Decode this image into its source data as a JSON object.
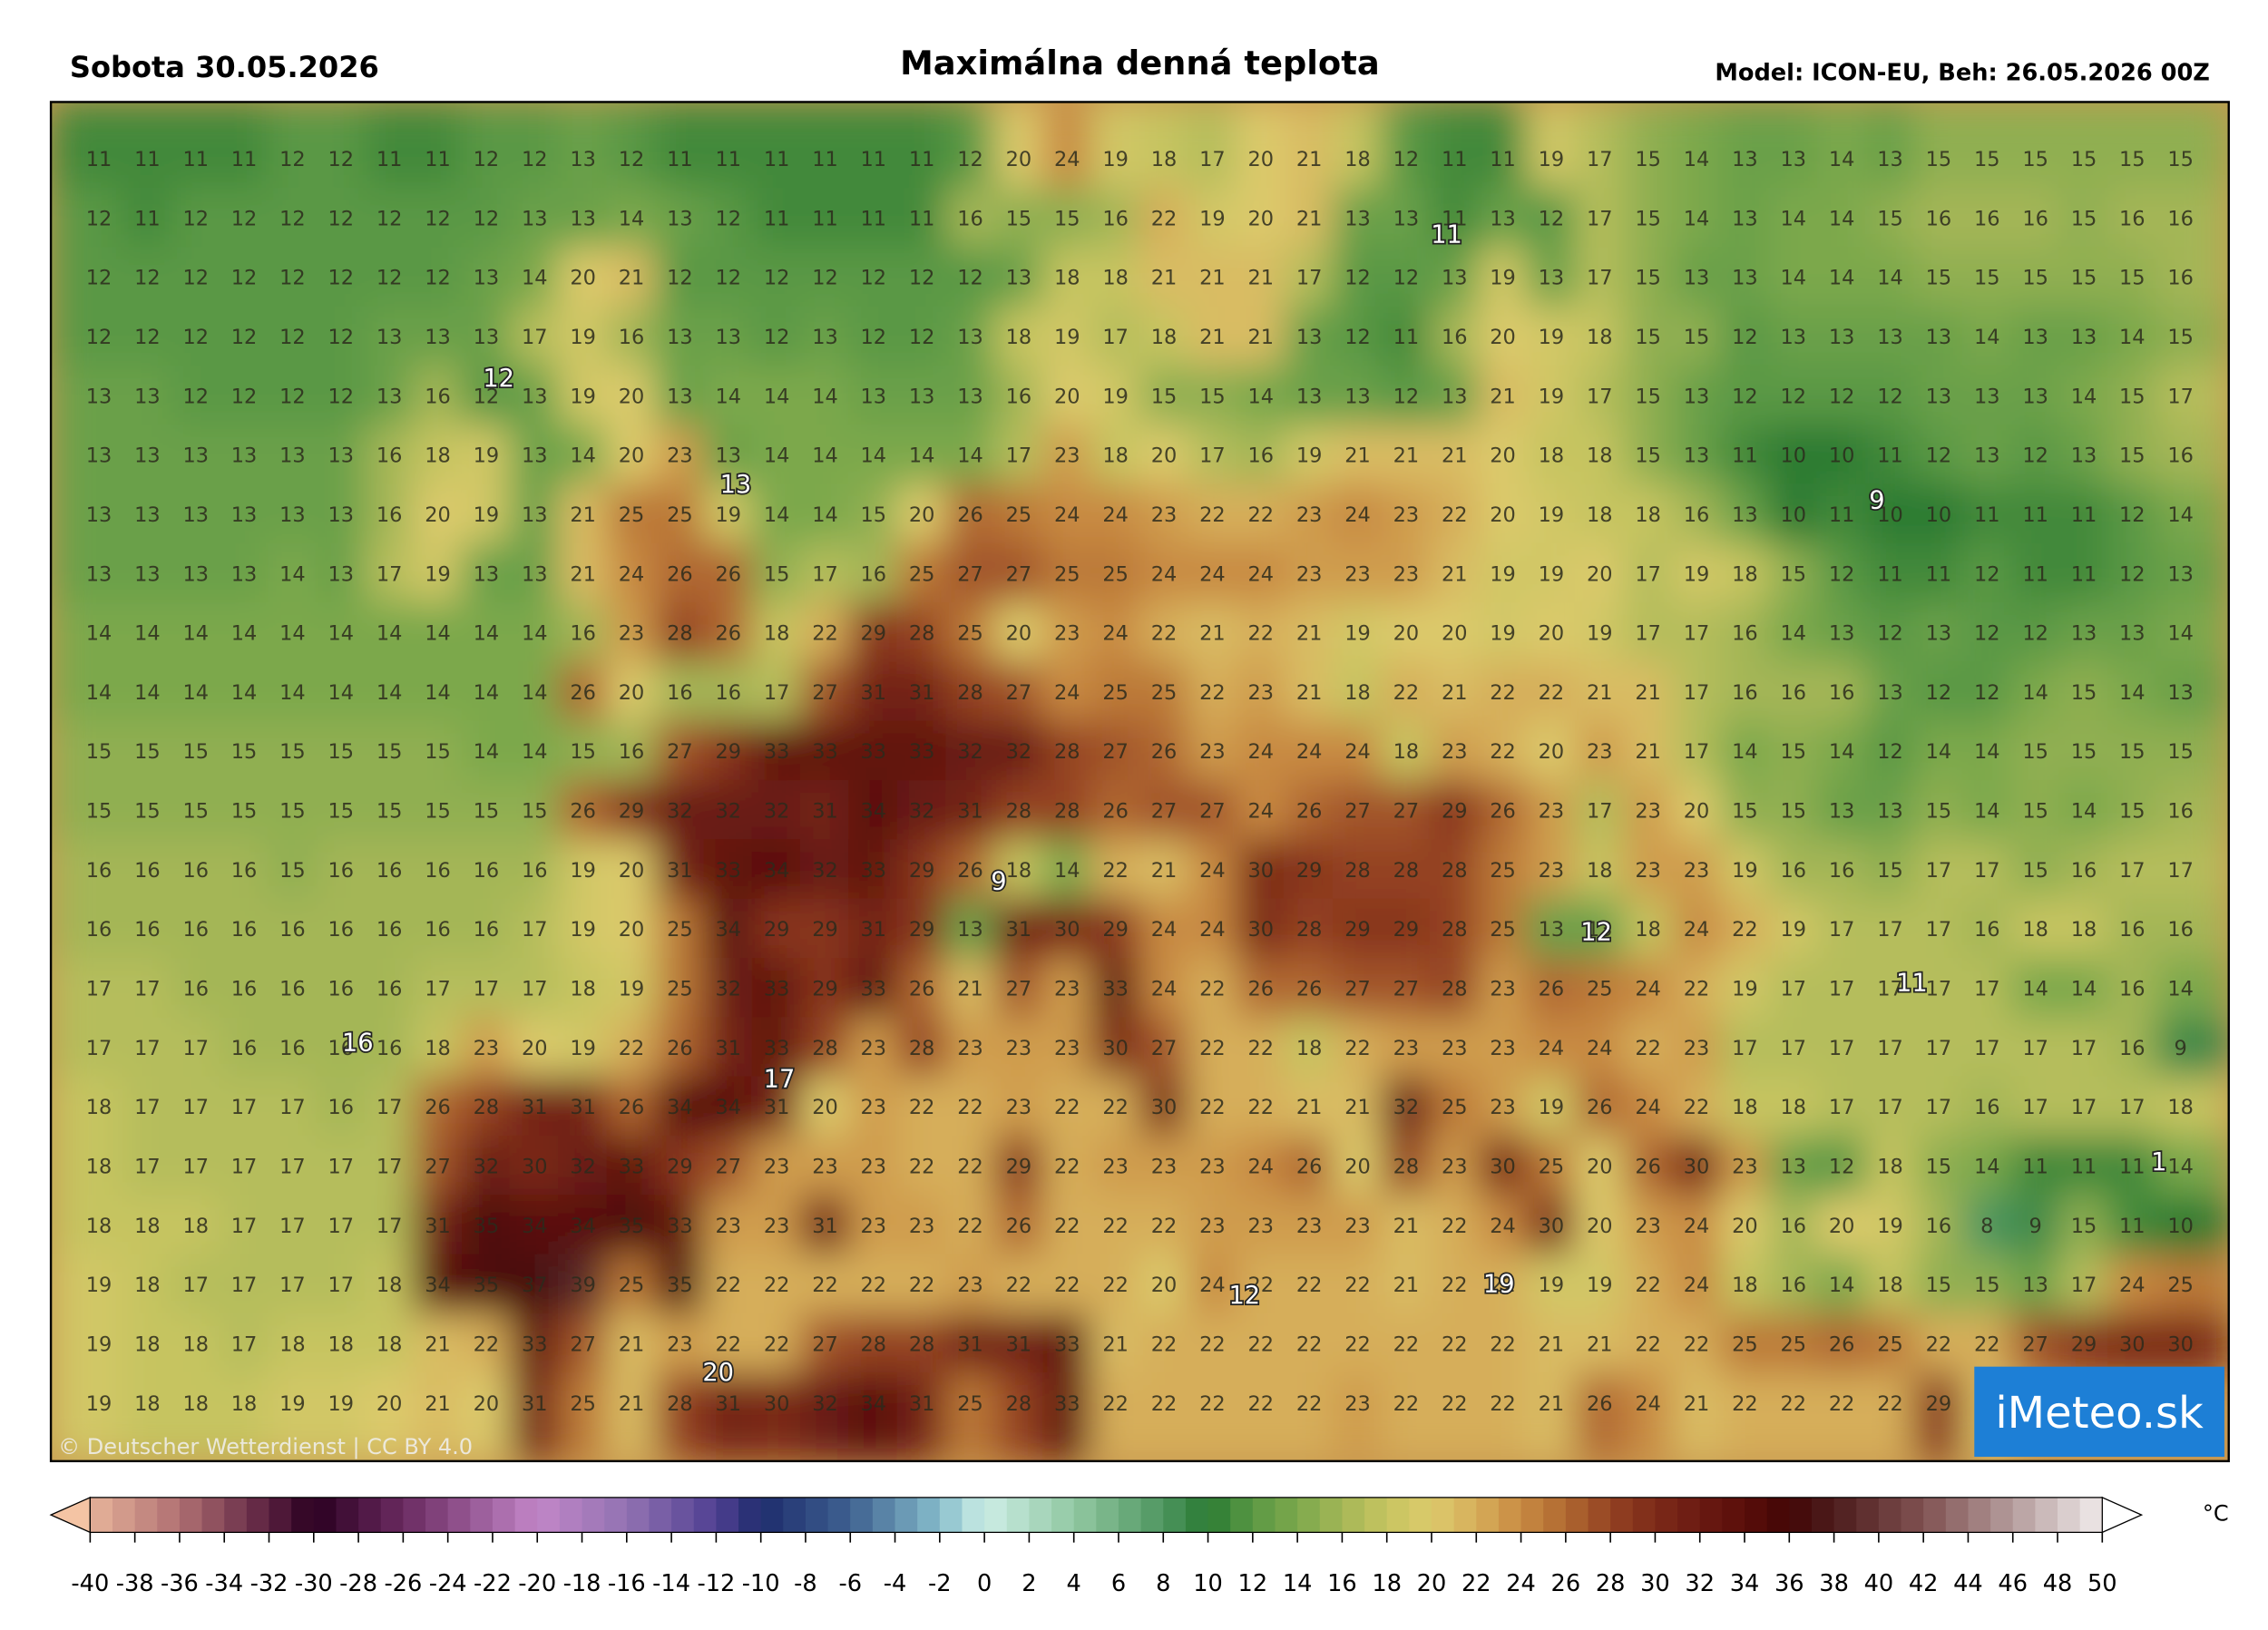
{
  "header": {
    "date": "Sobota 30.05.2026",
    "title": "Maximálna denná teplota",
    "model": "Model: ICON-EU, Beh: 26.05.2026 00Z"
  },
  "map": {
    "grid": [
      [
        11,
        11,
        11,
        11,
        12,
        12,
        11,
        11,
        12,
        12,
        13,
        12,
        11,
        11,
        11,
        11,
        11,
        11,
        12,
        20,
        24,
        19,
        18,
        17,
        20,
        21,
        18,
        12,
        11,
        11,
        19,
        17,
        15,
        14,
        13,
        13,
        14,
        13,
        15,
        15,
        15,
        15,
        15,
        15
      ],
      [
        12,
        11,
        12,
        12,
        12,
        12,
        12,
        12,
        12,
        13,
        13,
        14,
        13,
        12,
        11,
        11,
        11,
        11,
        16,
        15,
        15,
        16,
        22,
        19,
        20,
        21,
        13,
        13,
        11,
        13,
        12,
        17,
        15,
        14,
        13,
        14,
        14,
        15,
        16,
        16,
        16,
        15,
        16,
        16
      ],
      [
        12,
        12,
        12,
        12,
        12,
        12,
        12,
        12,
        13,
        14,
        20,
        21,
        12,
        12,
        12,
        12,
        12,
        12,
        12,
        13,
        18,
        18,
        21,
        21,
        21,
        17,
        12,
        12,
        13,
        19,
        13,
        17,
        15,
        13,
        13,
        14,
        14,
        14,
        15,
        15,
        15,
        15,
        15,
        16
      ],
      [
        12,
        12,
        12,
        12,
        12,
        12,
        13,
        13,
        13,
        17,
        19,
        16,
        13,
        13,
        12,
        13,
        12,
        12,
        13,
        18,
        19,
        17,
        18,
        21,
        21,
        13,
        12,
        11,
        16,
        20,
        19,
        18,
        15,
        15,
        12,
        13,
        13,
        13,
        13,
        14,
        13,
        13,
        14,
        15
      ],
      [
        13,
        13,
        12,
        12,
        12,
        12,
        13,
        16,
        12,
        13,
        19,
        20,
        13,
        14,
        14,
        14,
        13,
        13,
        13,
        16,
        20,
        19,
        15,
        15,
        14,
        13,
        13,
        12,
        13,
        21,
        19,
        17,
        15,
        13,
        12,
        12,
        12,
        12,
        13,
        13,
        13,
        14,
        15,
        17
      ],
      [
        13,
        13,
        13,
        13,
        13,
        13,
        16,
        18,
        19,
        13,
        14,
        20,
        23,
        13,
        14,
        14,
        14,
        14,
        14,
        17,
        23,
        18,
        20,
        17,
        16,
        19,
        21,
        21,
        21,
        20,
        18,
        18,
        15,
        13,
        11,
        10,
        10,
        11,
        12,
        13,
        12,
        13,
        15,
        16
      ],
      [
        13,
        13,
        13,
        13,
        13,
        13,
        16,
        20,
        19,
        13,
        21,
        25,
        25,
        19,
        14,
        14,
        15,
        20,
        26,
        25,
        24,
        24,
        23,
        22,
        22,
        23,
        24,
        23,
        22,
        20,
        19,
        18,
        18,
        16,
        13,
        10,
        11,
        10,
        10,
        11,
        11,
        11,
        12,
        14
      ],
      [
        13,
        13,
        13,
        13,
        14,
        13,
        17,
        19,
        13,
        13,
        21,
        24,
        26,
        26,
        15,
        17,
        16,
        25,
        27,
        27,
        25,
        25,
        24,
        24,
        24,
        23,
        23,
        23,
        21,
        19,
        19,
        20,
        17,
        19,
        18,
        15,
        12,
        11,
        11,
        12,
        11,
        11,
        12,
        13
      ],
      [
        14,
        14,
        14,
        14,
        14,
        14,
        14,
        14,
        14,
        14,
        16,
        23,
        28,
        26,
        18,
        22,
        29,
        28,
        25,
        20,
        23,
        24,
        22,
        21,
        22,
        21,
        19,
        20,
        20,
        19,
        20,
        19,
        17,
        17,
        16,
        14,
        13,
        12,
        13,
        12,
        12,
        13,
        13,
        14
      ],
      [
        14,
        14,
        14,
        14,
        14,
        14,
        14,
        14,
        14,
        14,
        26,
        20,
        16,
        16,
        17,
        27,
        31,
        31,
        28,
        27,
        24,
        25,
        25,
        22,
        23,
        21,
        18,
        22,
        21,
        22,
        22,
        21,
        21,
        17,
        16,
        16,
        16,
        13,
        12,
        12,
        14,
        15,
        14,
        13
      ],
      [
        15,
        15,
        15,
        15,
        15,
        15,
        15,
        15,
        14,
        14,
        15,
        16,
        27,
        29,
        33,
        33,
        33,
        33,
        32,
        32,
        28,
        27,
        26,
        23,
        24,
        24,
        24,
        18,
        23,
        22,
        20,
        23,
        21,
        17,
        14,
        15,
        14,
        12,
        14,
        14,
        15,
        15,
        15,
        15
      ],
      [
        15,
        15,
        15,
        15,
        15,
        15,
        15,
        15,
        15,
        15,
        26,
        29,
        32,
        32,
        32,
        31,
        34,
        32,
        31,
        28,
        28,
        26,
        27,
        27,
        24,
        26,
        27,
        27,
        29,
        26,
        23,
        17,
        23,
        20,
        15,
        15,
        13,
        13,
        15,
        14,
        15,
        14,
        15,
        16
      ],
      [
        16,
        16,
        16,
        16,
        15,
        16,
        16,
        16,
        16,
        16,
        19,
        20,
        31,
        33,
        34,
        32,
        33,
        29,
        26,
        18,
        14,
        22,
        21,
        24,
        30,
        29,
        28,
        28,
        28,
        25,
        23,
        18,
        23,
        23,
        19,
        16,
        16,
        15,
        17,
        17,
        15,
        16,
        17,
        17
      ],
      [
        16,
        16,
        16,
        16,
        16,
        16,
        16,
        16,
        16,
        17,
        19,
        20,
        25,
        34,
        29,
        29,
        31,
        29,
        13,
        31,
        30,
        29,
        24,
        24,
        30,
        28,
        29,
        29,
        28,
        25,
        13,
        13,
        18,
        24,
        22,
        19,
        17,
        17,
        17,
        16,
        18,
        18,
        16,
        16
      ],
      [
        17,
        17,
        16,
        16,
        16,
        16,
        16,
        17,
        17,
        17,
        18,
        19,
        25,
        32,
        33,
        29,
        33,
        26,
        21,
        27,
        23,
        33,
        24,
        22,
        26,
        26,
        27,
        27,
        28,
        23,
        26,
        25,
        24,
        22,
        19,
        17,
        17,
        17,
        17,
        17,
        14,
        14,
        16,
        14
      ],
      [
        17,
        17,
        17,
        16,
        16,
        16,
        16,
        18,
        23,
        20,
        19,
        22,
        26,
        31,
        33,
        28,
        23,
        28,
        23,
        23,
        23,
        30,
        27,
        22,
        22,
        18,
        22,
        23,
        23,
        23,
        24,
        24,
        22,
        23,
        17,
        17,
        17,
        17,
        17,
        17,
        17,
        17,
        16,
        9
      ],
      [
        18,
        17,
        17,
        17,
        17,
        16,
        17,
        26,
        28,
        31,
        31,
        26,
        34,
        34,
        31,
        20,
        23,
        22,
        22,
        23,
        22,
        22,
        30,
        22,
        22,
        21,
        21,
        32,
        25,
        23,
        19,
        26,
        24,
        22,
        18,
        18,
        17,
        17,
        17,
        16,
        17,
        17,
        17,
        18
      ],
      [
        18,
        17,
        17,
        17,
        17,
        17,
        17,
        27,
        32,
        30,
        32,
        33,
        29,
        27,
        23,
        23,
        23,
        22,
        22,
        29,
        22,
        23,
        23,
        23,
        24,
        26,
        20,
        28,
        23,
        30,
        25,
        20,
        26,
        30,
        23,
        13,
        12,
        18,
        15,
        14,
        11,
        11,
        11,
        14
      ],
      [
        18,
        18,
        18,
        17,
        17,
        17,
        17,
        31,
        35,
        34,
        34,
        35,
        33,
        23,
        23,
        31,
        23,
        23,
        22,
        26,
        22,
        22,
        22,
        23,
        23,
        23,
        23,
        21,
        22,
        24,
        30,
        20,
        23,
        24,
        20,
        16,
        20,
        19,
        16,
        8,
        9,
        15,
        11,
        10
      ],
      [
        19,
        18,
        17,
        17,
        17,
        17,
        18,
        34,
        35,
        37,
        39,
        25,
        35,
        22,
        22,
        22,
        22,
        22,
        23,
        22,
        22,
        22,
        20,
        24,
        22,
        22,
        22,
        21,
        22,
        22,
        19,
        19,
        22,
        24,
        18,
        16,
        14,
        18,
        15,
        15,
        13,
        17,
        24,
        25
      ],
      [
        19,
        18,
        18,
        17,
        18,
        18,
        18,
        21,
        22,
        33,
        27,
        21,
        23,
        22,
        22,
        27,
        28,
        28,
        31,
        31,
        33,
        21,
        22,
        22,
        22,
        22,
        22,
        22,
        22,
        22,
        21,
        21,
        22,
        22,
        25,
        25,
        26,
        25,
        22,
        22,
        27,
        29,
        30,
        30
      ],
      [
        19,
        18,
        18,
        18,
        19,
        19,
        20,
        21,
        20,
        31,
        25,
        21,
        28,
        31,
        30,
        32,
        34,
        31,
        25,
        28,
        33,
        22,
        22,
        22,
        22,
        22,
        23,
        22,
        22,
        22,
        21,
        26,
        24,
        21,
        22,
        22,
        22,
        22,
        29,
        21,
        null,
        null,
        null,
        null
      ]
    ],
    "highlights": [
      11,
      12,
      13,
      9,
      16,
      17,
      9,
      12,
      11,
      1,
      12,
      19,
      20
    ],
    "credit": "© Deutscher Wetterdienst | CC BY 4.0",
    "logo": "iMeteo.sk"
  },
  "colorbar": {
    "unit": "°C",
    "ticks": [
      -40,
      -38,
      -36,
      -34,
      -32,
      -30,
      -28,
      -26,
      -24,
      -22,
      -20,
      -18,
      -16,
      -14,
      -12,
      -10,
      -8,
      -6,
      -4,
      -2,
      0,
      2,
      4,
      6,
      8,
      10,
      12,
      14,
      16,
      18,
      20,
      22,
      24,
      26,
      28,
      30,
      32,
      34,
      36,
      38,
      40,
      42,
      44,
      46,
      48,
      50
    ]
  }
}
